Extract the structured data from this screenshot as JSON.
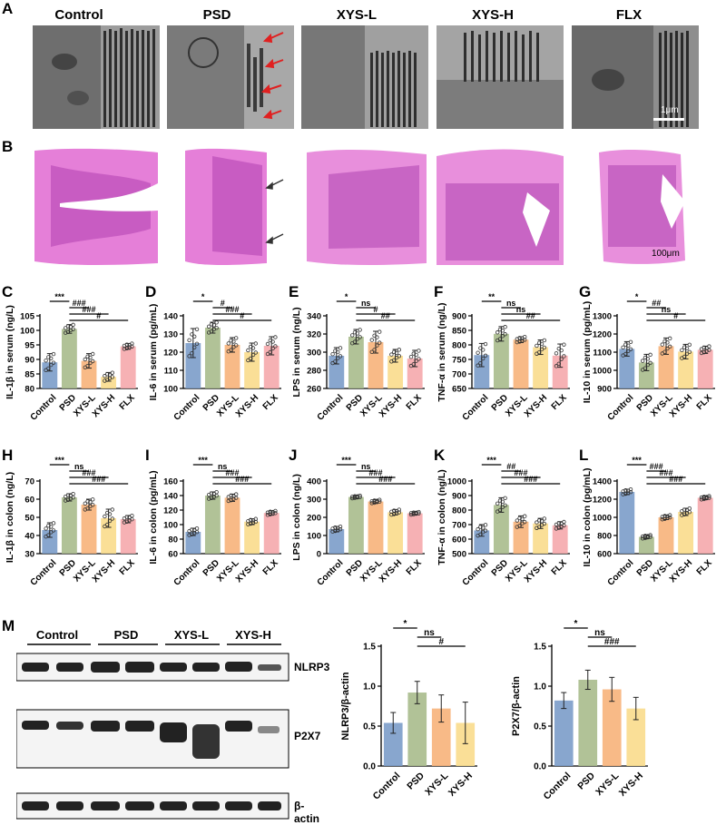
{
  "panels": {
    "A": "A",
    "B": "B",
    "C": "C",
    "D": "D",
    "E": "E",
    "F": "F",
    "G": "G",
    "H": "H",
    "I": "I",
    "J": "J",
    "K": "K",
    "L": "L",
    "M": "M"
  },
  "groups": [
    "Control",
    "PSD",
    "XYS-L",
    "XYS-H",
    "FLX"
  ],
  "scale_bars": {
    "em": "1μm",
    "he": "100μm"
  },
  "colors": {
    "Control": "#7b9cc9",
    "PSD": "#a8bb8c",
    "XYS-L": "#f7b27a",
    "XYS-H": "#f9dc8c",
    "FLX": "#f5a9ac"
  },
  "western_blot": {
    "groups": [
      "Control",
      "PSD",
      "XYS-L",
      "XYS-H"
    ],
    "bands": [
      "NLRP3",
      "P2X7",
      "β-actin"
    ]
  },
  "chart_data": [
    {
      "id": "C",
      "type": "bar",
      "ylabel": "IL-1β in serum (ng/L)",
      "ylim": [
        80,
        105
      ],
      "ticks": [
        80,
        85,
        90,
        95,
        100,
        105
      ],
      "categories": [
        "Control",
        "PSD",
        "XYS-L",
        "XYS-H",
        "FLX"
      ],
      "values": [
        89,
        100.5,
        89.5,
        84,
        94.5
      ],
      "errors": [
        3,
        1.5,
        2.5,
        1.5,
        1
      ],
      "annotations": [
        {
          "g1": 0,
          "g2": 1,
          "text": "***",
          "level": 0
        },
        {
          "g1": 1,
          "g2": 2,
          "text": "###",
          "level": 1
        },
        {
          "g1": 1,
          "g2": 3,
          "text": "###",
          "level": 2
        },
        {
          "g1": 1,
          "g2": 4,
          "text": "#",
          "level": 3
        }
      ]
    },
    {
      "id": "D",
      "type": "bar",
      "ylabel": "IL-6 in serum (pg/mL)",
      "ylim": [
        100,
        140
      ],
      "ticks": [
        100,
        110,
        120,
        130,
        140
      ],
      "categories": [
        "Control",
        "PSD",
        "XYS-L",
        "XYS-H",
        "FLX"
      ],
      "values": [
        125,
        133.5,
        124,
        120,
        123.5
      ],
      "errors": [
        8,
        3,
        4,
        5,
        5
      ],
      "annotations": [
        {
          "g1": 0,
          "g2": 1,
          "text": "*",
          "level": 0
        },
        {
          "g1": 1,
          "g2": 2,
          "text": "#",
          "level": 1
        },
        {
          "g1": 1,
          "g2": 3,
          "text": "###",
          "level": 2
        },
        {
          "g1": 1,
          "g2": 4,
          "text": "#",
          "level": 3
        }
      ]
    },
    {
      "id": "E",
      "type": "bar",
      "ylabel": "LPS in serum (ng/L)",
      "ylim": [
        260,
        340
      ],
      "ticks": [
        260,
        280,
        300,
        320,
        340
      ],
      "categories": [
        "Control",
        "PSD",
        "XYS-L",
        "XYS-H",
        "FLX"
      ],
      "values": [
        296,
        317,
        311,
        296,
        293
      ],
      "errors": [
        9,
        8,
        12,
        7,
        9
      ],
      "annotations": [
        {
          "g1": 0,
          "g2": 1,
          "text": "*",
          "level": 0
        },
        {
          "g1": 1,
          "g2": 2,
          "text": "ns",
          "level": 1
        },
        {
          "g1": 1,
          "g2": 3,
          "text": "#",
          "level": 2
        },
        {
          "g1": 1,
          "g2": 4,
          "text": "##",
          "level": 3
        }
      ]
    },
    {
      "id": "F",
      "type": "bar",
      "ylabel": "TNF-α in serum (ng/L)",
      "ylim": [
        650,
        900
      ],
      "ticks": [
        650,
        700,
        750,
        800,
        850,
        900
      ],
      "categories": [
        "Control",
        "PSD",
        "XYS-L",
        "XYS-H",
        "FLX"
      ],
      "values": [
        765,
        838,
        818,
        792,
        763
      ],
      "errors": [
        40,
        25,
        10,
        25,
        40
      ],
      "annotations": [
        {
          "g1": 0,
          "g2": 1,
          "text": "**",
          "level": 0
        },
        {
          "g1": 1,
          "g2": 2,
          "text": "ns",
          "level": 1
        },
        {
          "g1": 1,
          "g2": 3,
          "text": "ns",
          "level": 2
        },
        {
          "g1": 1,
          "g2": 4,
          "text": "##",
          "level": 3
        }
      ]
    },
    {
      "id": "G",
      "type": "bar",
      "ylabel": "IL-10 in serum (pg/mL)",
      "ylim": [
        900,
        1300
      ],
      "ticks": [
        900,
        1000,
        1100,
        1200,
        1300
      ],
      "categories": [
        "Control",
        "PSD",
        "XYS-L",
        "XYS-H",
        "FLX"
      ],
      "values": [
        1118,
        1043,
        1133,
        1103,
        1113
      ],
      "errors": [
        40,
        45,
        45,
        40,
        20
      ],
      "annotations": [
        {
          "g1": 0,
          "g2": 1,
          "text": "*",
          "level": 0
        },
        {
          "g1": 1,
          "g2": 2,
          "text": "##",
          "level": 1
        },
        {
          "g1": 1,
          "g2": 3,
          "text": "ns",
          "level": 2
        },
        {
          "g1": 1,
          "g2": 4,
          "text": "#",
          "level": 3
        }
      ]
    },
    {
      "id": "H",
      "type": "bar",
      "ylabel": "IL-1β in colon (ng/L)",
      "ylim": [
        30,
        70
      ],
      "ticks": [
        30,
        40,
        50,
        60,
        70
      ],
      "categories": [
        "Control",
        "PSD",
        "XYS-L",
        "XYS-H",
        "FLX"
      ],
      "values": [
        43,
        61,
        57,
        49.5,
        49
      ],
      "errors": [
        4,
        2,
        3,
        5,
        2
      ],
      "annotations": [
        {
          "g1": 0,
          "g2": 1,
          "text": "***",
          "level": 0
        },
        {
          "g1": 1,
          "g2": 2,
          "text": "ns",
          "level": 1
        },
        {
          "g1": 1,
          "g2": 3,
          "text": "###",
          "level": 2
        },
        {
          "g1": 1,
          "g2": 4,
          "text": "###",
          "level": 3
        }
      ]
    },
    {
      "id": "I",
      "type": "bar",
      "ylabel": "IL-6 in colon (pg/mL)",
      "ylim": [
        60,
        160
      ],
      "ticks": [
        60,
        80,
        100,
        120,
        140,
        160
      ],
      "categories": [
        "Control",
        "PSD",
        "XYS-L",
        "XYS-H",
        "FLX"
      ],
      "values": [
        90,
        140,
        137,
        104,
        116
      ],
      "errors": [
        5,
        5,
        5,
        4,
        3
      ],
      "annotations": [
        {
          "g1": 0,
          "g2": 1,
          "text": "***",
          "level": 0
        },
        {
          "g1": 1,
          "g2": 2,
          "text": "ns",
          "level": 1
        },
        {
          "g1": 1,
          "g2": 3,
          "text": "###",
          "level": 2
        },
        {
          "g1": 1,
          "g2": 4,
          "text": "###",
          "level": 3
        }
      ]
    },
    {
      "id": "J",
      "type": "bar",
      "ylabel": "LPS in colon (ng/L)",
      "ylim": [
        0,
        400
      ],
      "ticks": [
        0,
        100,
        200,
        300,
        400
      ],
      "categories": [
        "Control",
        "PSD",
        "XYS-L",
        "XYS-H",
        "FLX"
      ],
      "values": [
        135,
        312,
        287,
        228,
        222
      ],
      "errors": [
        15,
        8,
        10,
        15,
        8
      ],
      "annotations": [
        {
          "g1": 0,
          "g2": 1,
          "text": "***",
          "level": 0
        },
        {
          "g1": 1,
          "g2": 2,
          "text": "ns",
          "level": 1
        },
        {
          "g1": 1,
          "g2": 3,
          "text": "###",
          "level": 2
        },
        {
          "g1": 1,
          "g2": 4,
          "text": "###",
          "level": 3
        }
      ]
    },
    {
      "id": "K",
      "type": "bar",
      "ylabel": "TNF-α in colon (ng/L)",
      "ylim": [
        500,
        1000
      ],
      "ticks": [
        500,
        600,
        700,
        800,
        900,
        1000
      ],
      "categories": [
        "Control",
        "PSD",
        "XYS-L",
        "XYS-H",
        "FLX"
      ],
      "values": [
        660,
        835,
        720,
        708,
        695
      ],
      "errors": [
        40,
        50,
        40,
        35,
        25
      ],
      "annotations": [
        {
          "g1": 0,
          "g2": 1,
          "text": "***",
          "level": 0
        },
        {
          "g1": 1,
          "g2": 2,
          "text": "##",
          "level": 1
        },
        {
          "g1": 1,
          "g2": 3,
          "text": "###",
          "level": 2
        },
        {
          "g1": 1,
          "g2": 4,
          "text": "###",
          "level": 3
        }
      ]
    },
    {
      "id": "L",
      "type": "bar",
      "ylabel": "IL-10 in colon (pg/mL)",
      "ylim": [
        600,
        1400
      ],
      "ticks": [
        600,
        800,
        1000,
        1200,
        1400
      ],
      "categories": [
        "Control",
        "PSD",
        "XYS-L",
        "XYS-H",
        "FLX"
      ],
      "values": [
        1280,
        785,
        1000,
        1060,
        1215
      ],
      "errors": [
        30,
        20,
        25,
        40,
        20
      ],
      "annotations": [
        {
          "g1": 0,
          "g2": 1,
          "text": "***",
          "level": 0
        },
        {
          "g1": 1,
          "g2": 2,
          "text": "###",
          "level": 1
        },
        {
          "g1": 1,
          "g2": 3,
          "text": "###",
          "level": 2
        },
        {
          "g1": 1,
          "g2": 4,
          "text": "###",
          "level": 3
        }
      ]
    },
    {
      "id": "M1",
      "type": "bar",
      "ylabel": "NLRP3/β-actin",
      "ylim": [
        0,
        1.5
      ],
      "ticks": [
        0.0,
        0.5,
        1.0,
        1.5
      ],
      "categories": [
        "Control",
        "PSD",
        "XYS-L",
        "XYS-H"
      ],
      "values": [
        0.54,
        0.92,
        0.72,
        0.54
      ],
      "errors": [
        0.13,
        0.14,
        0.17,
        0.26
      ],
      "annotations": [
        {
          "g1": 0,
          "g2": 1,
          "text": "*",
          "level": 0
        },
        {
          "g1": 1,
          "g2": 2,
          "text": "ns",
          "level": 1
        },
        {
          "g1": 1,
          "g2": 3,
          "text": "#",
          "level": 2
        }
      ]
    },
    {
      "id": "M2",
      "type": "bar",
      "ylabel": "P2X7/β-actin",
      "ylim": [
        0,
        1.5
      ],
      "ticks": [
        0.0,
        0.5,
        1.0,
        1.5
      ],
      "categories": [
        "Control",
        "PSD",
        "XYS-L",
        "XYS-H"
      ],
      "values": [
        0.82,
        1.08,
        0.96,
        0.72
      ],
      "errors": [
        0.1,
        0.12,
        0.15,
        0.14
      ],
      "annotations": [
        {
          "g1": 0,
          "g2": 1,
          "text": "*",
          "level": 0
        },
        {
          "g1": 1,
          "g2": 2,
          "text": "ns",
          "level": 1
        },
        {
          "g1": 1,
          "g2": 3,
          "text": "###",
          "level": 2
        }
      ]
    }
  ]
}
